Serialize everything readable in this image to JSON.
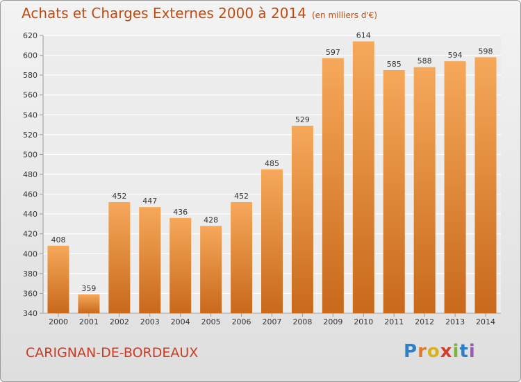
{
  "header": {
    "title": "Achats et Charges Externes 2000 à 2014",
    "unit": "(en milliers d'€)"
  },
  "footer": {
    "city": "CARIGNAN-DE-BORDEAUX",
    "logo_letters": [
      "P",
      "r",
      "o",
      "x",
      "i",
      "t",
      "i"
    ],
    "logo_colors": [
      "#2f7fc4",
      "#e2792a",
      "#d8b21a",
      "#d43c2e",
      "#7ab43a",
      "#2f7fc4",
      "#9a5bb8"
    ]
  },
  "colors": {
    "bar_light": "#f6a85a",
    "bar_dark": "#c8691c",
    "title": "#c04a10"
  },
  "chart_data": {
    "type": "bar",
    "title": "Achats et Charges Externes 2000 à 2014",
    "categories": [
      "2000",
      "2001",
      "2002",
      "2003",
      "2004",
      "2005",
      "2006",
      "2007",
      "2008",
      "2009",
      "2010",
      "2011",
      "2012",
      "2013",
      "2014"
    ],
    "values": [
      408,
      359,
      452,
      447,
      436,
      428,
      452,
      485,
      529,
      597,
      614,
      585,
      588,
      594,
      598
    ],
    "ylim": [
      340,
      620
    ],
    "yticks": [
      340,
      360,
      380,
      400,
      420,
      440,
      460,
      480,
      500,
      520,
      540,
      560,
      580,
      600,
      620
    ],
    "grid": true,
    "data_labels": true
  }
}
